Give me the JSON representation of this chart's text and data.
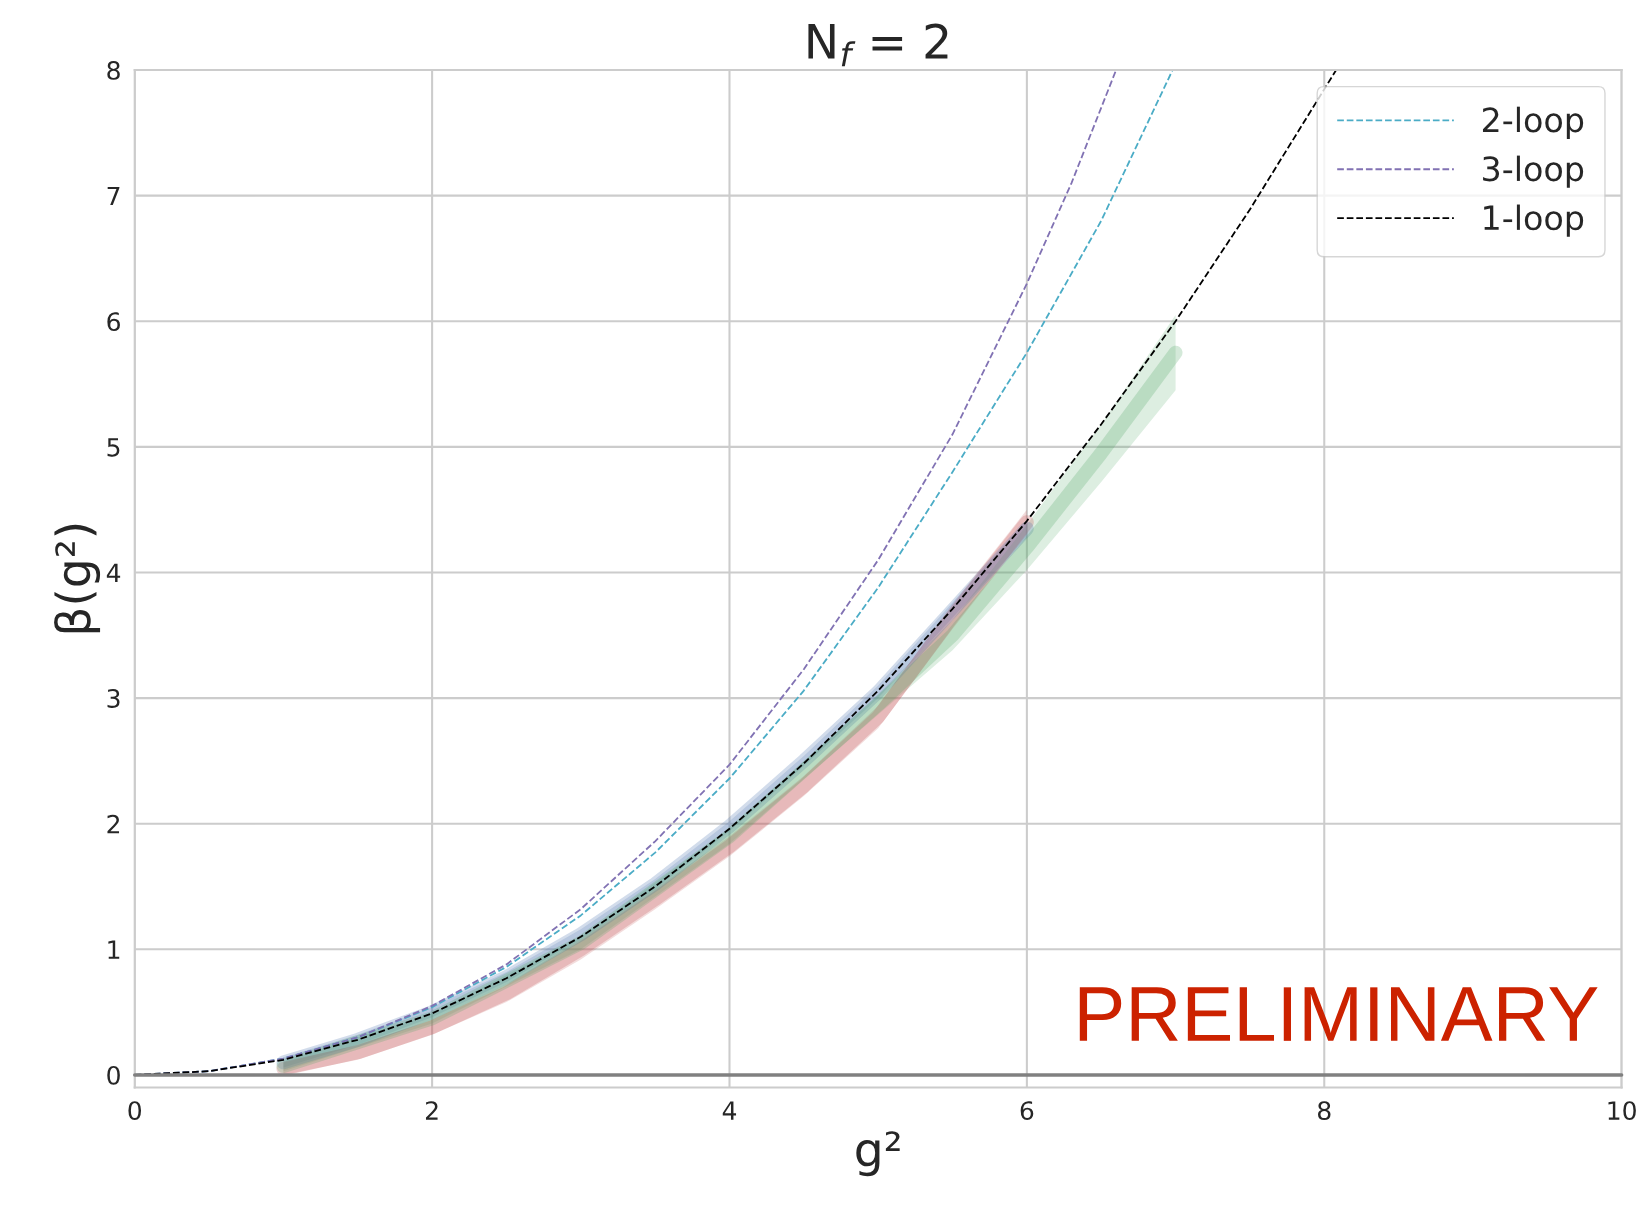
{
  "chart_data": {
    "type": "line",
    "title": "N$_{f}$ = 2",
    "xlabel": "g²",
    "ylabel": "β(g²)",
    "xlim": [
      0,
      10
    ],
    "ylim": [
      -0.1,
      8
    ],
    "xticks": [
      0,
      2,
      4,
      6,
      8,
      10
    ],
    "yticks": [
      0,
      1,
      2,
      3,
      4,
      5,
      6,
      7,
      8
    ],
    "grid": true,
    "legend": "top right",
    "line_style": "dashed",
    "marker": "none",
    "ref_lines": [
      {
        "axis": "y",
        "value": 0,
        "color": "#808080"
      }
    ],
    "annotations": [
      "PRELIMINARY"
    ],
    "series": [
      {
        "color": "#c44e52",
        "x": [
          1,
          1.5,
          2,
          2.5,
          3,
          3.5,
          4,
          4.5,
          5,
          5.5,
          6
        ],
        "values": [
          0.05,
          0.18,
          0.38,
          0.65,
          1.0,
          1.4,
          1.82,
          2.3,
          2.85,
          3.65,
          4.4
        ],
        "lower": [
          0.0,
          0.12,
          0.32,
          0.58,
          0.92,
          1.32,
          1.74,
          2.22,
          2.76,
          3.55,
          4.3
        ],
        "upper": [
          0.1,
          0.24,
          0.44,
          0.72,
          1.08,
          1.48,
          1.9,
          2.38,
          2.94,
          3.75,
          4.5
        ],
        "line_style": "solid"
      },
      {
        "color": "#4c72b0",
        "x": [
          1,
          1.5,
          2,
          2.5,
          3,
          3.5,
          4,
          4.5,
          5,
          5.5,
          6
        ],
        "values": [
          0.1,
          0.28,
          0.5,
          0.78,
          1.12,
          1.52,
          1.98,
          2.5,
          3.05,
          3.7,
          4.35
        ],
        "lower": [
          0.06,
          0.24,
          0.46,
          0.74,
          1.08,
          1.48,
          1.94,
          2.46,
          3.0,
          3.64,
          4.28
        ],
        "upper": [
          0.14,
          0.32,
          0.54,
          0.82,
          1.16,
          1.56,
          2.02,
          2.54,
          3.1,
          3.76,
          4.42
        ],
        "line_style": "solid"
      },
      {
        "color": "#55a868",
        "x": [
          1,
          2,
          3,
          4,
          5,
          5.5,
          6,
          6.5,
          7
        ],
        "values": [
          0.07,
          0.45,
          1.05,
          1.9,
          2.95,
          3.5,
          4.2,
          4.95,
          5.75
        ],
        "lower": [
          0.03,
          0.41,
          1.0,
          1.84,
          2.87,
          3.38,
          4.02,
          4.72,
          5.45
        ],
        "upper": [
          0.11,
          0.49,
          1.1,
          1.96,
          3.03,
          3.62,
          4.38,
          5.18,
          6.05
        ],
        "line_style": "solid"
      },
      {
        "name": "2-loop",
        "color": "#4bacc6",
        "x": [
          0,
          0.5,
          1,
          1.5,
          2,
          2.5,
          3,
          3.5,
          4,
          4.5,
          5,
          5.5,
          6,
          6.5,
          6.98
        ],
        "values": [
          0,
          0.03,
          0.13,
          0.3,
          0.54,
          0.86,
          1.27,
          1.77,
          2.36,
          3.06,
          3.88,
          4.8,
          5.75,
          6.8,
          8
        ]
      },
      {
        "name": "3-loop",
        "color": "#8172b3",
        "x": [
          0,
          0.5,
          1,
          1.5,
          2,
          2.5,
          3,
          3.5,
          4,
          4.5,
          5,
          5.5,
          6,
          6.3,
          6.6
        ],
        "values": [
          0,
          0.03,
          0.13,
          0.3,
          0.55,
          0.88,
          1.32,
          1.86,
          2.47,
          3.23,
          4.1,
          5.1,
          6.3,
          7.1,
          8
        ]
      },
      {
        "name": "1-loop",
        "color": "#000000",
        "x": [
          0,
          0.5,
          1,
          1.5,
          2,
          2.5,
          3,
          3.5,
          4,
          4.5,
          5,
          5.5,
          6,
          6.5,
          7,
          7.5,
          8.08
        ],
        "values": [
          0,
          0.03,
          0.12,
          0.28,
          0.49,
          0.77,
          1.1,
          1.5,
          1.96,
          2.48,
          3.06,
          3.71,
          4.41,
          5.18,
          6.0,
          6.89,
          8
        ]
      }
    ]
  }
}
